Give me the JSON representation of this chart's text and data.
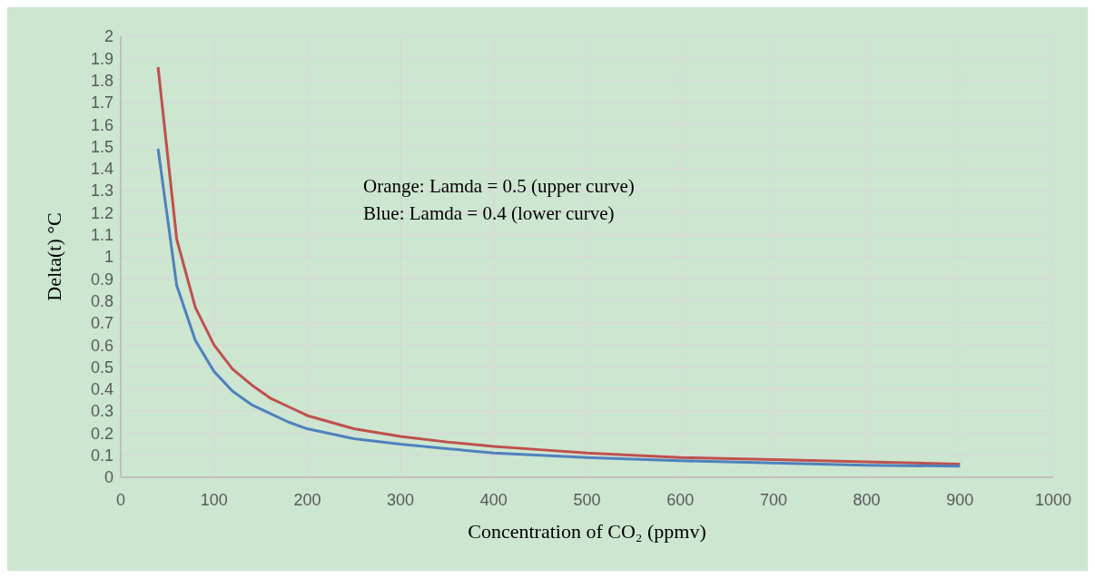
{
  "chart_data": {
    "type": "line",
    "xlabel": "Concentration of CO₂ (ppmv)",
    "ylabel": "Delta(t) °C",
    "annotations": [
      "Orange: Lamda = 0.5 (upper curve)",
      "Blue: Lamda = 0.4 (lower curve)"
    ],
    "x": [
      40,
      60,
      80,
      100,
      120,
      140,
      160,
      180,
      200,
      250,
      300,
      350,
      400,
      450,
      500,
      600,
      700,
      800,
      900
    ],
    "series": [
      {
        "color": "#c0504d",
        "values": [
          1.86,
          1.08,
          0.77,
          0.6,
          0.49,
          0.42,
          0.36,
          0.32,
          0.28,
          0.22,
          0.185,
          0.16,
          0.14,
          0.125,
          0.11,
          0.09,
          0.08,
          0.07,
          0.06
        ]
      },
      {
        "color": "#4f81bd",
        "values": [
          1.49,
          0.87,
          0.62,
          0.48,
          0.39,
          0.33,
          0.29,
          0.25,
          0.22,
          0.175,
          0.15,
          0.13,
          0.11,
          0.1,
          0.09,
          0.075,
          0.065,
          0.055,
          0.05
        ]
      }
    ],
    "xlim": [
      0,
      1000
    ],
    "xticks": [
      0,
      100,
      200,
      300,
      400,
      500,
      600,
      700,
      800,
      900,
      1000
    ],
    "ylim": [
      0,
      2
    ],
    "yticks": [
      0,
      0.1,
      0.2,
      0.3,
      0.4,
      0.5,
      0.6,
      0.7,
      0.8,
      0.9,
      1,
      1.1,
      1.2,
      1.3,
      1.4,
      1.5,
      1.6,
      1.7,
      1.8,
      1.9,
      2
    ],
    "grid": true,
    "legend": false,
    "marker": "none",
    "line_style": "solid"
  }
}
